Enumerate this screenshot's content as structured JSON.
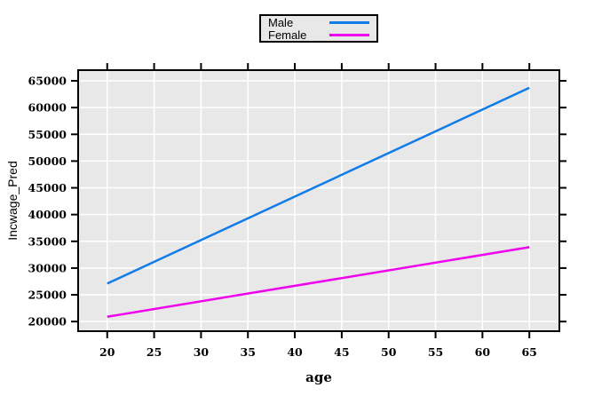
{
  "chart_data": {
    "type": "line",
    "title": "",
    "xlabel": "age",
    "ylabel": "Incwage_Pred",
    "xlim": [
      16.9,
      68.2
    ],
    "ylim": [
      18200,
      67000
    ],
    "xticks": [
      20,
      25,
      30,
      35,
      40,
      45,
      50,
      55,
      60,
      65
    ],
    "yticks": [
      20000,
      25000,
      30000,
      35000,
      40000,
      45000,
      50000,
      55000,
      60000,
      65000
    ],
    "grid": true,
    "legend_position": "top-center",
    "style": {
      "plot_background": "#e8e8e8",
      "gridline_color": "#ffffff",
      "frame_color": "#000000",
      "figure_background": "#ffffff"
    },
    "series": [
      {
        "name": "Male",
        "color": "#0f7ce8",
        "points": [
          [
            20,
            27100
          ],
          [
            65,
            63700
          ]
        ]
      },
      {
        "name": "Female",
        "color": "#ee00ee",
        "points": [
          [
            20,
            20900
          ],
          [
            65,
            33900
          ]
        ]
      }
    ]
  }
}
